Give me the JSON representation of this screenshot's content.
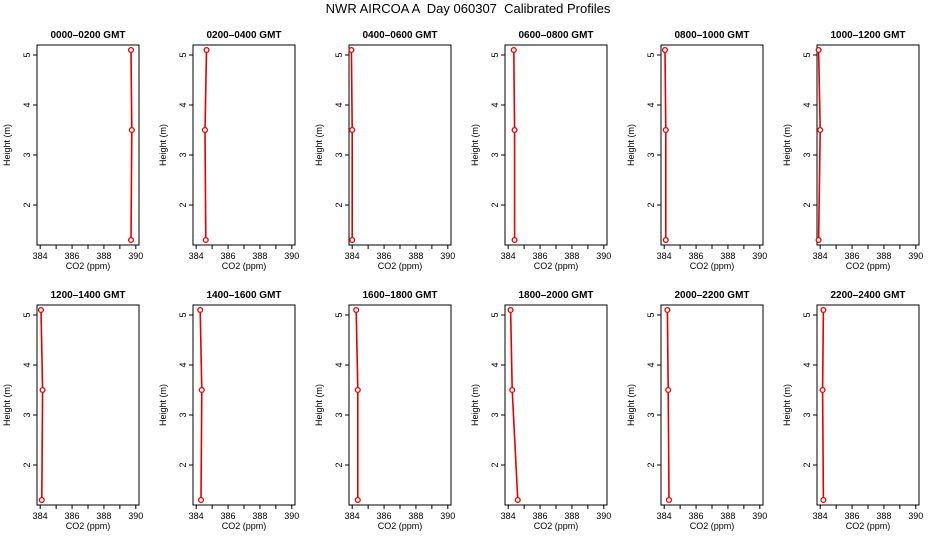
{
  "title": "NWR AIRCOA A  Day 060307  Calibrated Profiles",
  "colors": {
    "profile": "#e00000",
    "axis": "#000000"
  },
  "chart_data": {
    "type": "line",
    "xlabel": "CO2 (ppm)",
    "ylabel": "Height (m)",
    "xlim": [
      383.8,
      390.2
    ],
    "ylim": [
      1.2,
      5.2
    ],
    "x_ticks": [
      384,
      385,
      386,
      387,
      388,
      389,
      390
    ],
    "x_tick_labels": [
      "384",
      "386",
      "388",
      "390"
    ],
    "y_ticks": [
      2,
      3,
      4,
      5
    ],
    "y_tick_labels": [
      "2",
      "3",
      "4",
      "5"
    ],
    "grid": false,
    "panels": [
      {
        "title": "0000–0200 GMT",
        "points": [
          {
            "x": 389.7,
            "y": 1.3
          },
          {
            "x": 389.75,
            "y": 3.5
          },
          {
            "x": 389.7,
            "y": 5.1
          }
        ]
      },
      {
        "title": "0200–0400 GMT",
        "points": [
          {
            "x": 384.6,
            "y": 1.3
          },
          {
            "x": 384.55,
            "y": 3.5
          },
          {
            "x": 384.65,
            "y": 5.1
          }
        ]
      },
      {
        "title": "0400–0600 GMT",
        "points": [
          {
            "x": 384.0,
            "y": 1.3
          },
          {
            "x": 384.0,
            "y": 3.5
          },
          {
            "x": 383.95,
            "y": 5.1
          }
        ]
      },
      {
        "title": "0600–0800 GMT",
        "points": [
          {
            "x": 384.4,
            "y": 1.3
          },
          {
            "x": 384.4,
            "y": 3.5
          },
          {
            "x": 384.35,
            "y": 5.1
          }
        ]
      },
      {
        "title": "0800–1000 GMT",
        "points": [
          {
            "x": 384.1,
            "y": 1.3
          },
          {
            "x": 384.1,
            "y": 3.5
          },
          {
            "x": 384.05,
            "y": 5.1
          }
        ]
      },
      {
        "title": "1000–1200 GMT",
        "points": [
          {
            "x": 383.9,
            "y": 1.3
          },
          {
            "x": 384.0,
            "y": 3.5
          },
          {
            "x": 383.9,
            "y": 5.1
          }
        ]
      },
      {
        "title": "1200–1400 GMT",
        "points": [
          {
            "x": 384.1,
            "y": 1.3
          },
          {
            "x": 384.15,
            "y": 3.5
          },
          {
            "x": 384.05,
            "y": 5.1
          }
        ]
      },
      {
        "title": "1400–1600 GMT",
        "points": [
          {
            "x": 384.3,
            "y": 1.3
          },
          {
            "x": 384.35,
            "y": 3.5
          },
          {
            "x": 384.25,
            "y": 5.1
          }
        ]
      },
      {
        "title": "1600–1800 GMT",
        "points": [
          {
            "x": 384.35,
            "y": 1.3
          },
          {
            "x": 384.35,
            "y": 3.5
          },
          {
            "x": 384.25,
            "y": 5.1
          }
        ]
      },
      {
        "title": "1800–2000 GMT",
        "points": [
          {
            "x": 384.6,
            "y": 1.3
          },
          {
            "x": 384.25,
            "y": 3.5
          },
          {
            "x": 384.15,
            "y": 5.1
          }
        ]
      },
      {
        "title": "2000–2200 GMT",
        "points": [
          {
            "x": 384.3,
            "y": 1.3
          },
          {
            "x": 384.25,
            "y": 3.5
          },
          {
            "x": 384.2,
            "y": 5.1
          }
        ]
      },
      {
        "title": "2200–2400 GMT",
        "points": [
          {
            "x": 384.2,
            "y": 1.3
          },
          {
            "x": 384.15,
            "y": 3.5
          },
          {
            "x": 384.2,
            "y": 5.1
          }
        ]
      }
    ]
  }
}
